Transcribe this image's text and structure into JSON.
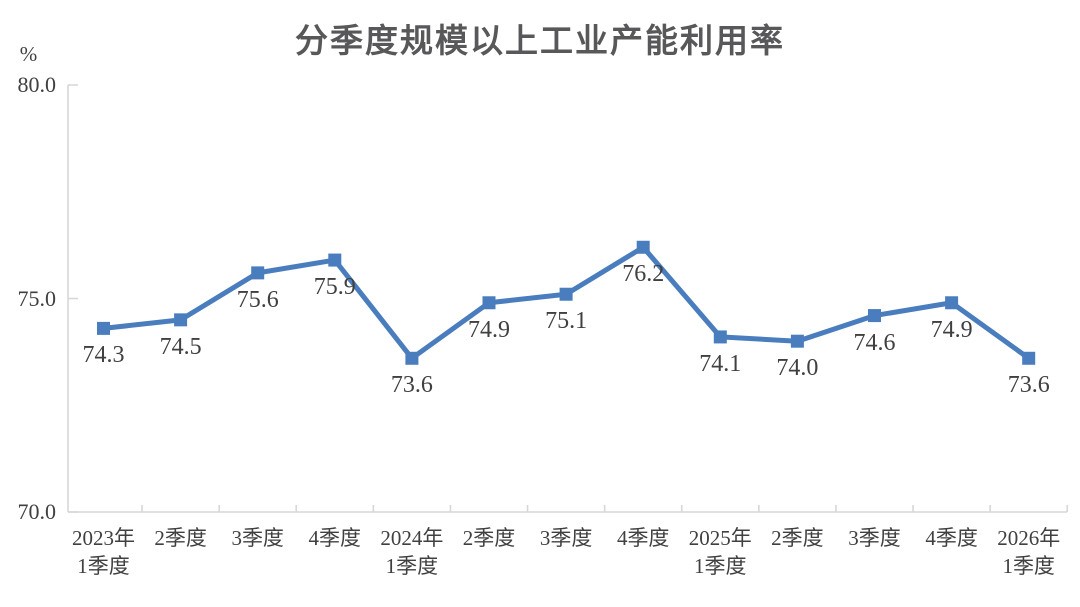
{
  "chart_data": {
    "type": "line",
    "title": "分季度规模以上工业产能利用率",
    "unit_label": "%",
    "xlabel": "",
    "ylabel": "%",
    "categories": [
      "2023年\n1季度",
      "2季度",
      "3季度",
      "4季度",
      "2024年\n1季度",
      "2季度",
      "3季度",
      "4季度",
      "2025年\n1季度",
      "2季度",
      "3季度",
      "4季度",
      "2026年\n1季度"
    ],
    "series": [
      {
        "name": "产能利用率",
        "values": [
          74.3,
          74.5,
          75.6,
          75.9,
          73.6,
          74.9,
          75.1,
          76.2,
          74.1,
          74.0,
          74.6,
          74.9,
          73.6
        ],
        "data_labels": [
          "74.3",
          "74.5",
          "75.6",
          "75.9",
          "73.6",
          "74.9",
          "75.1",
          "76.2",
          "74.1",
          "74.0",
          "74.6",
          "74.9",
          "73.6"
        ]
      }
    ],
    "ylim": [
      70.0,
      80.0
    ],
    "yticks": [
      70.0,
      75.0,
      80.0
    ],
    "ytick_labels": [
      "70.0",
      "75.0",
      "80.0"
    ],
    "grid": false,
    "legend": "none",
    "marker": "square",
    "data_label_position": "below",
    "colors": {
      "line": "#4a7dbe",
      "marker": "#4a7dbe",
      "axis": "#d7d7d7",
      "text": "#404040",
      "title": "#58585a"
    }
  }
}
